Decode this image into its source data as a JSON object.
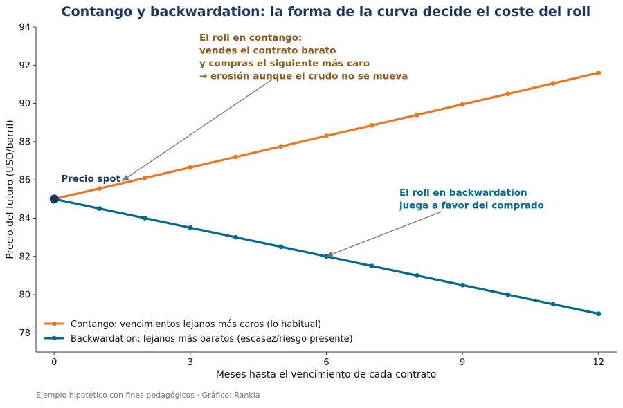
{
  "chart_data": {
    "type": "line",
    "title": "Contango y backwardation: la forma de la curva decide el coste del roll",
    "xlabel": "Meses hasta el vencimiento de cada contrato",
    "ylabel": "Precio del futuro (USD/barril)",
    "xlim": [
      -0.4,
      12.4
    ],
    "ylim": [
      77,
      94
    ],
    "xticks": [
      0,
      3,
      6,
      9,
      12
    ],
    "yticks": [
      78,
      80,
      82,
      84,
      86,
      88,
      90,
      92,
      94
    ],
    "grid": false,
    "legend_position": "lower-left",
    "x": [
      0,
      1,
      2,
      3,
      4,
      5,
      6,
      7,
      8,
      9,
      10,
      11,
      12
    ],
    "series": [
      {
        "name": "Contango: vencimientos lejanos más caros (lo habitual)",
        "color": "#e87722",
        "values": [
          85.0,
          85.55,
          86.1,
          86.65,
          87.2,
          87.75,
          88.3,
          88.85,
          89.4,
          89.95,
          90.5,
          91.05,
          91.6
        ]
      },
      {
        "name": "Backwardation: lejanos más baratos (escasez/riesgo presente)",
        "color": "#006a8e",
        "values": [
          85.0,
          84.5,
          84.0,
          83.5,
          83.0,
          82.5,
          82.0,
          81.5,
          81.0,
          80.5,
          80.0,
          79.5,
          79.0
        ]
      }
    ],
    "spot": {
      "label": "Precio spot",
      "x": 0,
      "y": 85.0,
      "color": "#1b365d"
    },
    "annotations": [
      {
        "lines": [
          "El roll en contango:",
          "vendes el contrato barato",
          "y compras el siguiente más caro",
          "→ erosión aunque el crudo no se mueva"
        ],
        "color": "#8a5a1e",
        "target_x": 1.5,
        "target_y": 85.95
      },
      {
        "lines": [
          "El roll en backwardation",
          "juega a favor del comprado"
        ],
        "color": "#006a8e",
        "target_x": 6.0,
        "target_y": 82.0
      }
    ],
    "footnote": "Ejemplo hipotético con fines pedagógicos · Gráfico: Rankia"
  }
}
